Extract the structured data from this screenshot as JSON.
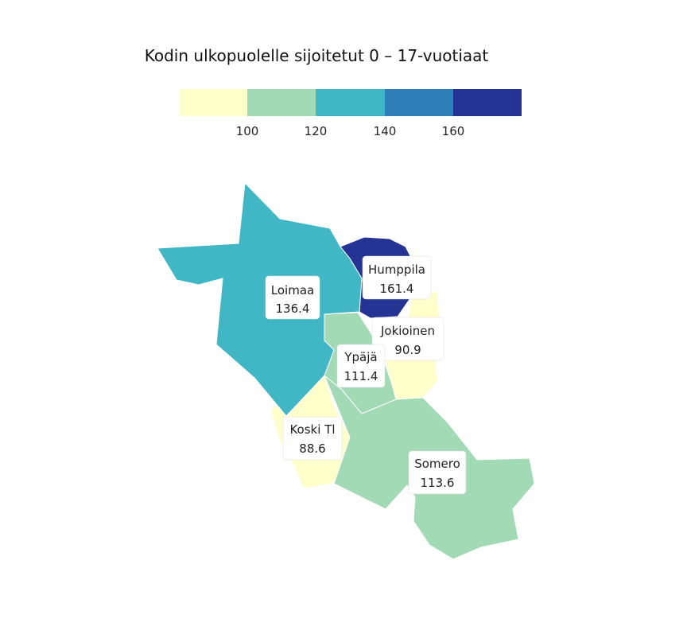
{
  "title": "Kodin ulkopuolelle sijoitetut 0 – 17-vuotiaat",
  "legend": {
    "colors": [
      "#ffffcc",
      "#a1dab4",
      "#41b6c4",
      "#2c7fb8",
      "#253494"
    ],
    "breaks": [
      "100",
      "120",
      "140",
      "160"
    ]
  },
  "chart_data": {
    "type": "choropleth",
    "title": "Kodin ulkopuolelle sijoitetut 0 – 17-vuotiaat",
    "bins": [
      {
        "range": "< 100",
        "color": "#ffffcc"
      },
      {
        "range": "100 – 120",
        "color": "#a1dab4"
      },
      {
        "range": "120 – 140",
        "color": "#41b6c4"
      },
      {
        "range": "140 – 160",
        "color": "#2c7fb8"
      },
      {
        "range": "> 160",
        "color": "#253494"
      }
    ],
    "regions": [
      {
        "name": "Loimaa",
        "value": "136.4",
        "color": "#41b6c4"
      },
      {
        "name": "Humppila",
        "value": "161.4",
        "color": "#253494"
      },
      {
        "name": "Jokioinen",
        "value": "90.9",
        "color": "#ffffcc"
      },
      {
        "name": "Ypäjä",
        "value": "111.4",
        "color": "#a1dab4"
      },
      {
        "name": "Koski Tl",
        "value": "88.6",
        "color": "#ffffcc"
      },
      {
        "name": "Somero",
        "value": "113.6",
        "color": "#a1dab4"
      }
    ]
  }
}
